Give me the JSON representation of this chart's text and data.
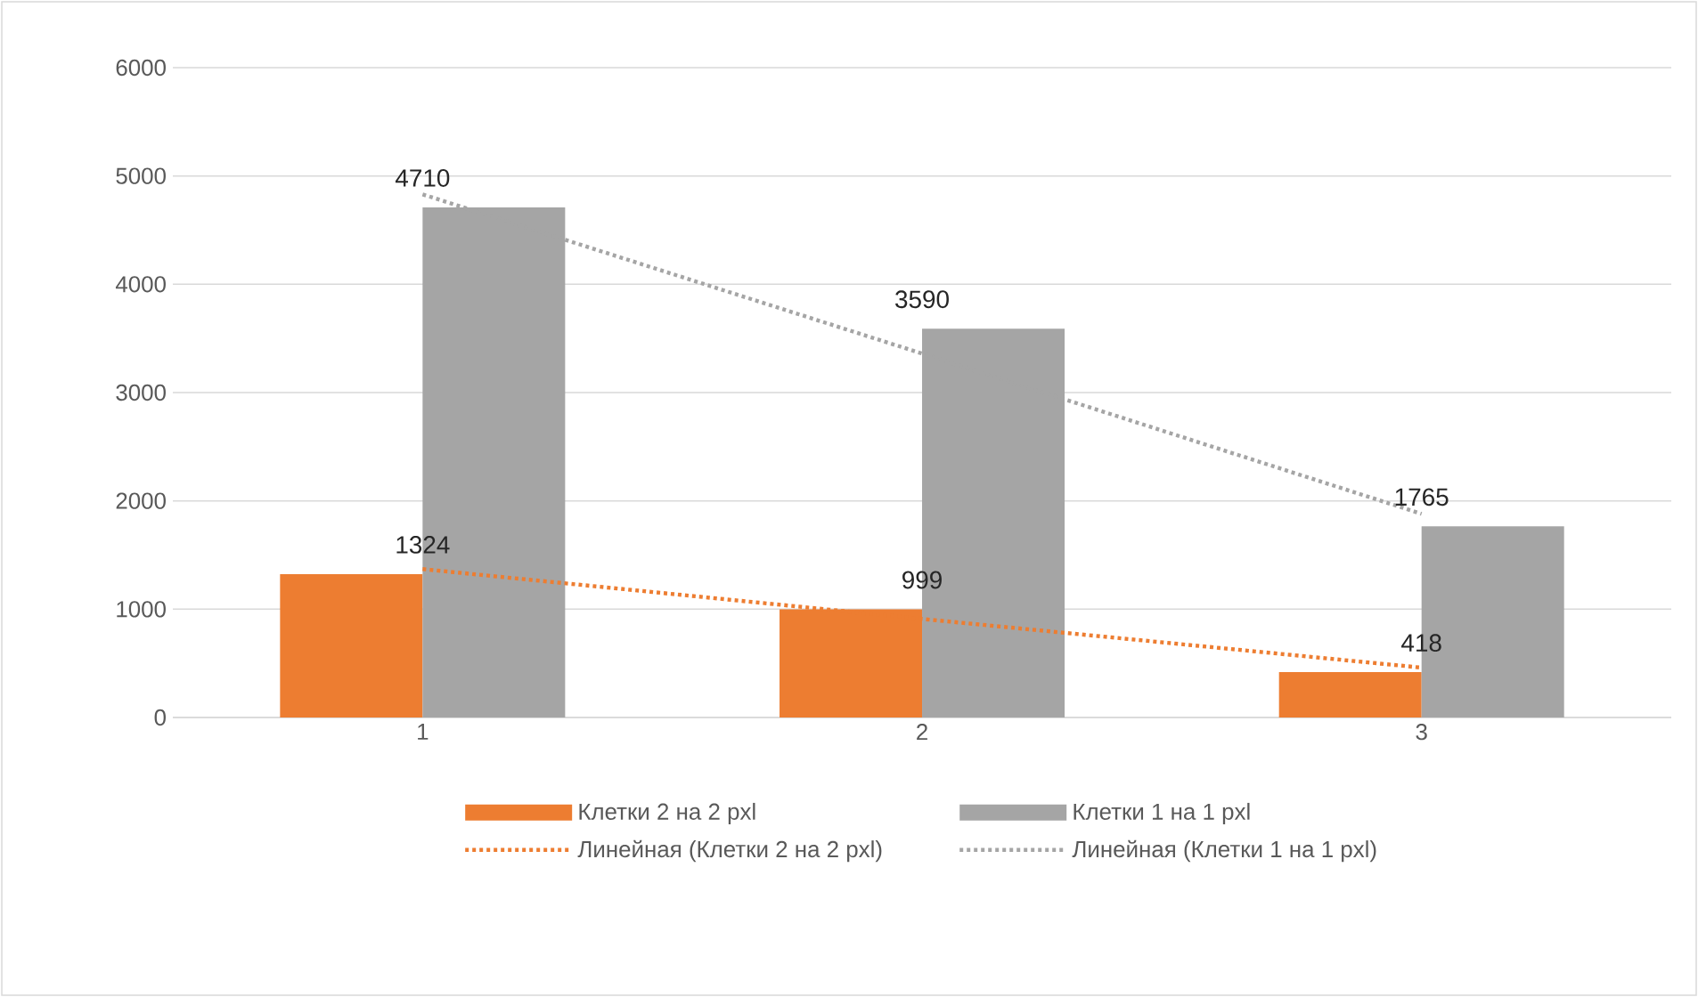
{
  "chart_data": {
    "type": "bar",
    "categories": [
      "1",
      "2",
      "3"
    ],
    "series": [
      {
        "name": "Клетки 2 на 2 pxl",
        "color": "#ed7d31",
        "values": [
          1324,
          999,
          418
        ],
        "value_labels": [
          "1324",
          "999",
          "418"
        ]
      },
      {
        "name": "Клетки 1 на 1 pxl",
        "color": "#a5a5a5",
        "values": [
          4710,
          3590,
          1765
        ],
        "value_labels": [
          "4710",
          "3590",
          "1765"
        ]
      },
      {
        "name": "Линейная (Клетки 2 на 2 pxl)",
        "type": "line",
        "color": "#ed7d31",
        "line_style": "dotted",
        "values": [
          1370,
          910,
          460
        ]
      },
      {
        "name": "Линейная (Клетки 1 на 1 pxl)",
        "type": "line",
        "color": "#a5a5a5",
        "line_style": "dotted",
        "values": [
          4830,
          3360,
          1880
        ]
      }
    ],
    "ylim": [
      0,
      6000
    ],
    "yticks": [
      0,
      1000,
      2000,
      3000,
      4000,
      5000,
      6000
    ],
    "grid": "y",
    "legend": "bottom"
  }
}
